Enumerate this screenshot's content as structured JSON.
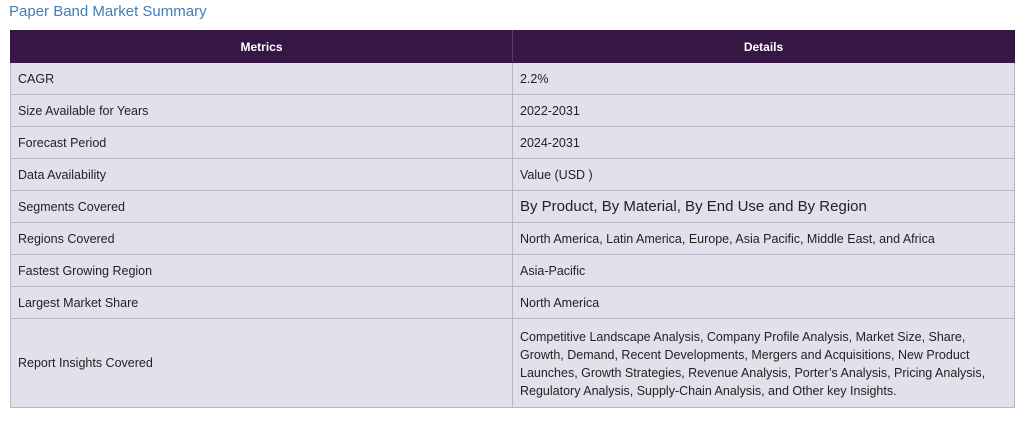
{
  "page": {
    "title": "Paper Band Market Summary"
  },
  "table": {
    "headers": {
      "metric": "Metrics",
      "details": "Details"
    },
    "rows": [
      {
        "metric": "CAGR",
        "details": "2.2%"
      },
      {
        "metric": "Size Available for Years",
        "details": "2022-2031"
      },
      {
        "metric": "Forecast Period",
        "details": "2024-2031"
      },
      {
        "metric": "Data Availability",
        "details": "Value (USD )"
      },
      {
        "metric": "Segments Covered",
        "details": "By Product, By Material, By End Use and By Region"
      },
      {
        "metric": "Regions Covered",
        "details": "North America, Latin America, Europe, Asia Pacific, Middle East, and Africa"
      },
      {
        "metric": "Fastest Growing Region",
        "details": "Asia-Pacific"
      },
      {
        "metric": "Largest Market Share",
        "details": "North America"
      },
      {
        "metric": "Report Insights Covered",
        "details": "Competitive Landscape Analysis, Company Profile Analysis, Market Size, Share, Growth, Demand, Recent Developments, Mergers and Acquisitions, New Product Launches, Growth Strategies, Revenue Analysis, Porter’s Analysis, Pricing Analysis, Regulatory Analysis, Supply-Chain Analysis, and Other key Insights."
      }
    ]
  }
}
